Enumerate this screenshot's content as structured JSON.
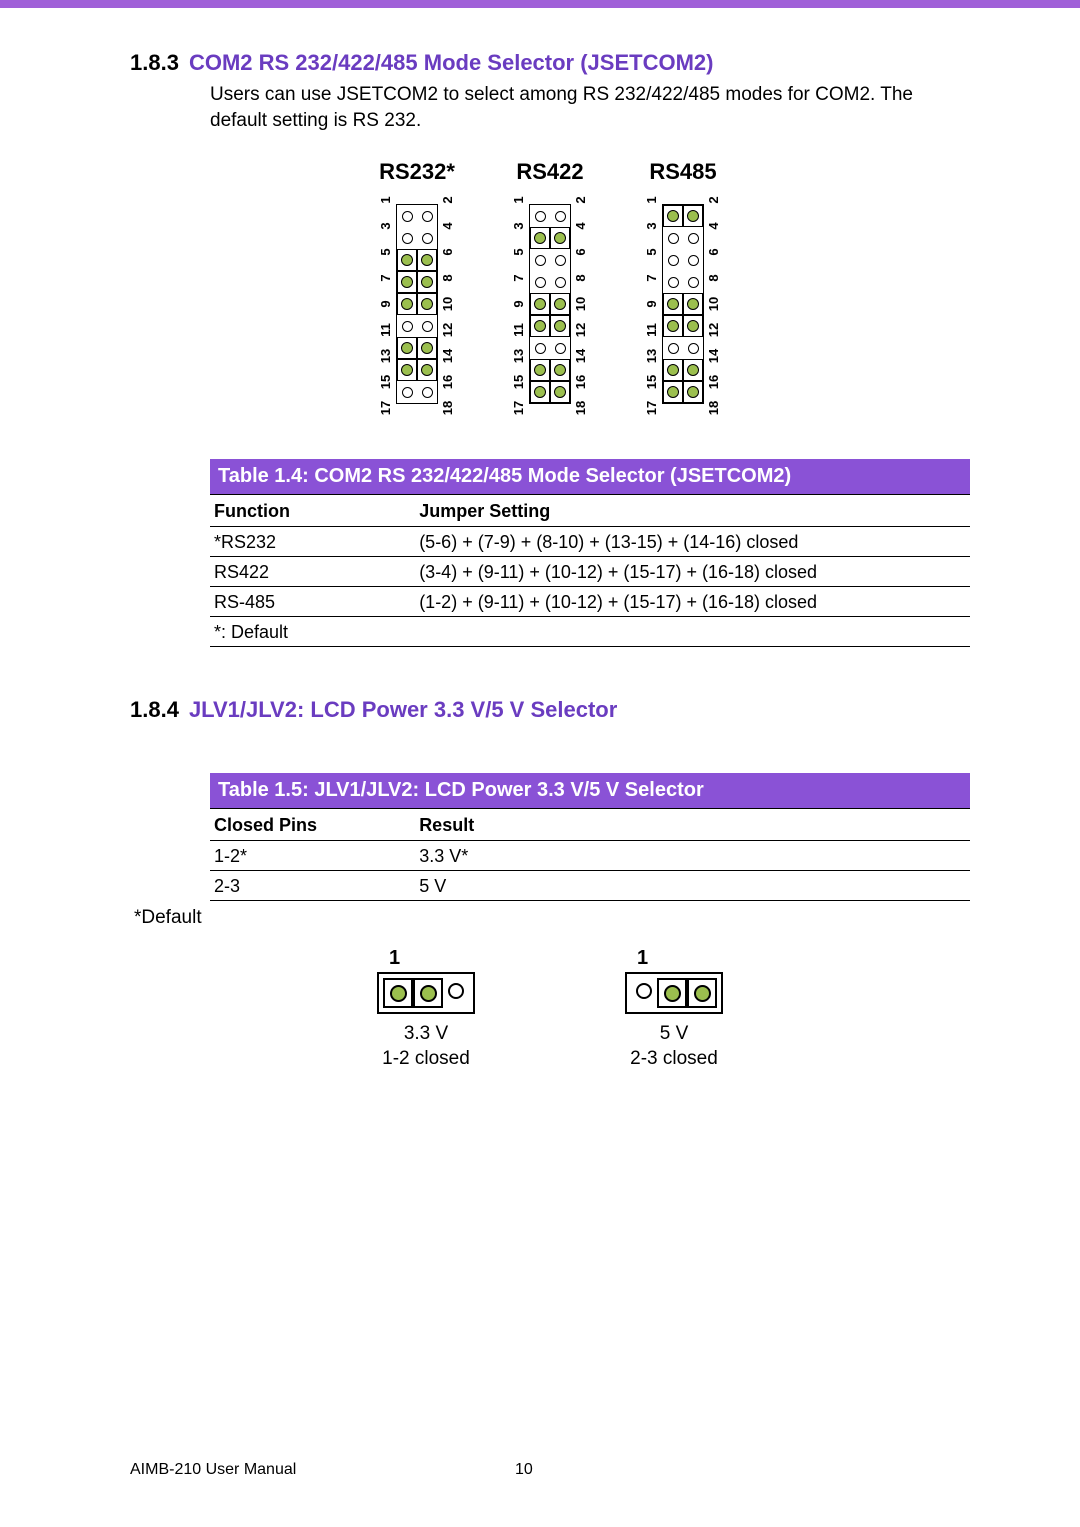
{
  "section183": {
    "num": "1.8.3",
    "title": "COM2 RS 232/422/485 Mode Selector (JSETCOM2)",
    "body": "Users can use JSETCOM2 to select among RS 232/422/485 modes for COM2. The default setting is RS 232."
  },
  "jumperDiagrams": {
    "rows": 9,
    "leftNums": [
      "1",
      "3",
      "5",
      "7",
      "9",
      "11",
      "13",
      "15",
      "17"
    ],
    "rightNums": [
      "2",
      "4",
      "6",
      "8",
      "10",
      "12",
      "14",
      "16",
      "18"
    ],
    "modes": [
      {
        "title": "RS232*",
        "closed": [
          "5-6",
          "7-8",
          "9-10",
          "13-14",
          "15-16"
        ]
      },
      {
        "title": "RS422",
        "closed": [
          "3-4",
          "9-10",
          "11-12",
          "15-16",
          "17-18"
        ]
      },
      {
        "title": "RS485",
        "closed": [
          "1-2",
          "9-10",
          "11-12",
          "15-16",
          "17-18"
        ]
      }
    ],
    "pin_colors": {
      "open": "#ffffff",
      "closed_fill": "#9bbf4e",
      "border": "#000000"
    }
  },
  "table14": {
    "caption": "Table 1.4: COM2 RS 232/422/485 Mode Selector (JSETCOM2)",
    "head": [
      "Function",
      "Jumper Setting"
    ],
    "rows": [
      [
        "*RS232",
        "(5-6) + (7-9) + (8-10) + (13-15) + (14-16) closed"
      ],
      [
        "RS422",
        "(3-4) + (9-11) + (10-12) + (15-17) + (16-18) closed"
      ],
      [
        "RS-485",
        "(1-2) + (9-11) + (10-12) + (15-17) + (16-18) closed"
      ],
      [
        "*: Default",
        ""
      ]
    ]
  },
  "section184": {
    "num": "1.8.4",
    "title": "JLV1/JLV2: LCD Power 3.3 V/5 V Selector"
  },
  "table15": {
    "caption": "Table 1.5: JLV1/JLV2: LCD Power 3.3 V/5 V Selector",
    "head": [
      "Closed Pins",
      "Result"
    ],
    "rows": [
      [
        "1-2*",
        "3.3 V*"
      ],
      [
        "2-3",
        "5 V"
      ]
    ],
    "note": "*Default"
  },
  "jlv": {
    "left": {
      "pin1": "1",
      "pattern": [
        "closed",
        "closed",
        "open"
      ],
      "caption1": "3.3 V",
      "caption2": "1-2 closed"
    },
    "right": {
      "pin1": "1",
      "pattern": [
        "open",
        "closed",
        "closed"
      ],
      "caption1": "5 V",
      "caption2": "2-3 closed"
    }
  },
  "footer": {
    "manual": "AIMB-210 User Manual",
    "page": "10"
  },
  "colors": {
    "accent": "#8a52d6",
    "heading": "#6a3cc0"
  }
}
